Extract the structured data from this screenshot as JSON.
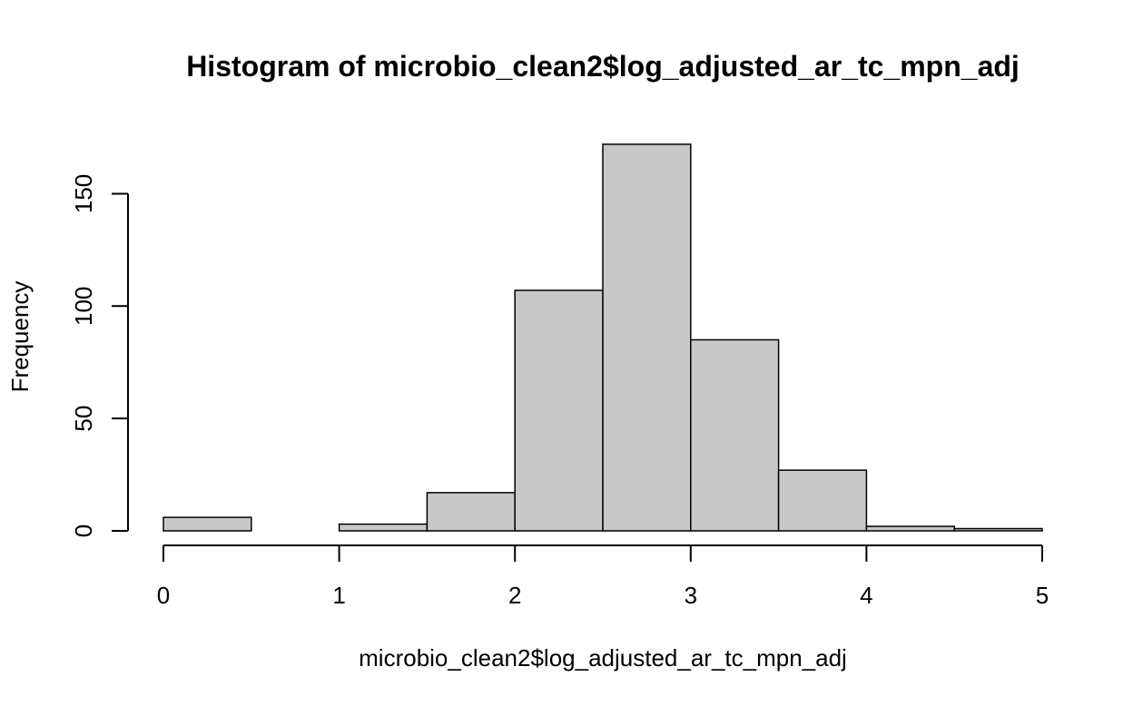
{
  "chart_data": {
    "type": "bar",
    "title": "Histogram of microbio_clean2$log_adjusted_ar_tc_mpn_adj",
    "xlabel": "microbio_clean2$log_adjusted_ar_tc_mpn_adj",
    "ylabel": "Frequency",
    "bins": [
      {
        "x0": 0.0,
        "x1": 0.5,
        "count": 6
      },
      {
        "x0": 0.5,
        "x1": 1.0,
        "count": 0
      },
      {
        "x0": 1.0,
        "x1": 1.5,
        "count": 3
      },
      {
        "x0": 1.5,
        "x1": 2.0,
        "count": 17
      },
      {
        "x0": 2.0,
        "x1": 2.5,
        "count": 107
      },
      {
        "x0": 2.5,
        "x1": 3.0,
        "count": 172
      },
      {
        "x0": 3.0,
        "x1": 3.5,
        "count": 85
      },
      {
        "x0": 3.5,
        "x1": 4.0,
        "count": 27
      },
      {
        "x0": 4.0,
        "x1": 4.5,
        "count": 2
      },
      {
        "x0": 4.5,
        "x1": 5.0,
        "count": 1
      }
    ],
    "xlim": [
      0,
      5
    ],
    "ylim": [
      0,
      150
    ],
    "x_ticks": [
      0,
      1,
      2,
      3,
      4,
      5
    ],
    "y_ticks": [
      0,
      50,
      100,
      150
    ],
    "bar_color": "#c8c8c8",
    "edge_color": "#000000",
    "grid": false,
    "legend": "none"
  }
}
